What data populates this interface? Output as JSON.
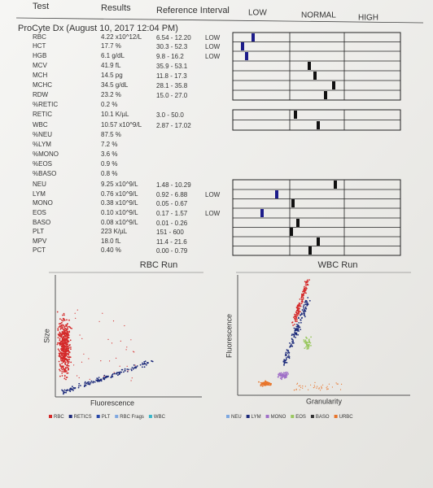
{
  "header": {
    "test": "Test",
    "results": "Results",
    "reference": "Reference Interval",
    "low": "LOW",
    "normal": "NORMAL",
    "high": "HIGH"
  },
  "title": "ProCyte Dx (August 10, 2017 12:04 PM)",
  "rows": [
    {
      "test": "RBC",
      "result": "4.22 x10^12/L",
      "reference": "6.54 - 12.20",
      "flag": "LOW"
    },
    {
      "test": "HCT",
      "result": "17.7 %",
      "reference": "30.3 - 52.3",
      "flag": "LOW"
    },
    {
      "test": "HGB",
      "result": "6.1 g/dL",
      "reference": "9.8 - 16.2",
      "flag": "LOW"
    },
    {
      "test": "MCV",
      "result": "41.9 fL",
      "reference": "35.9 - 53.1"
    },
    {
      "test": "MCH",
      "result": "14.5 pg",
      "reference": "11.8 - 17.3"
    },
    {
      "test": "MCHC",
      "result": "34.5 g/dL",
      "reference": "28.1 - 35.8"
    },
    {
      "test": "RDW",
      "result": "23.2 %",
      "reference": "15.0 - 27.0"
    },
    {
      "test": "%RETIC",
      "result": "0.2 %"
    },
    {
      "test": "RETIC",
      "result": "10.1 K/µL",
      "reference": "3.0 - 50.0"
    },
    {
      "test": "WBC",
      "result": "10.57 x10^9/L",
      "reference": "2.87 - 17.02"
    },
    {
      "test": "%NEU",
      "result": "87.5 %"
    },
    {
      "test": "%LYM",
      "result": "7.2 %"
    },
    {
      "test": "%MONO",
      "result": "3.6 %"
    },
    {
      "test": "%EOS",
      "result": "0.9 %"
    },
    {
      "test": "%BASO",
      "result": "0.8 %"
    },
    {
      "test": "NEU",
      "result": "9.25 x10^9/L",
      "reference": "1.48 - 10.29"
    },
    {
      "test": "LYM",
      "result": "0.76 x10^9/L",
      "reference": "0.92 - 6.88",
      "flag": "LOW"
    },
    {
      "test": "MONO",
      "result": "0.38 x10^9/L",
      "reference": "0.05 - 0.67"
    },
    {
      "test": "EOS",
      "result": "0.10 x10^9/L",
      "reference": "0.17 - 1.57",
      "flag": "LOW"
    },
    {
      "test": "BASO",
      "result": "0.08 x10^9/L",
      "reference": "0.01 - 0.26"
    },
    {
      "test": "PLT",
      "result": "223 K/µL",
      "reference": "151 - 600"
    },
    {
      "test": "MPV",
      "result": "18.0 fL",
      "reference": "11.4 - 21.6"
    },
    {
      "test": "PCT",
      "result": "0.40 %",
      "reference": "0.00 - 0.79"
    }
  ],
  "plots": [
    {
      "title": "RBC Run",
      "xlabel": "Fluorescence",
      "ylabel": "Size",
      "legend": [
        {
          "name": "RBC",
          "color": "#d42a2a"
        },
        {
          "name": "RETICS",
          "color": "#1c2a7a"
        },
        {
          "name": "PLT",
          "color": "#2848a8"
        },
        {
          "name": "RBC Frags",
          "color": "#7fa8e0"
        },
        {
          "name": "WBC",
          "color": "#39b6c9"
        }
      ]
    },
    {
      "title": "WBC Run",
      "xlabel": "Granularity",
      "ylabel": "Fluorescence",
      "legend": [
        {
          "name": "NEU",
          "color": "#7fa8e0"
        },
        {
          "name": "LYM",
          "color": "#1c2a7a"
        },
        {
          "name": "MONO",
          "color": "#a070c8"
        },
        {
          "name": "EOS",
          "color": "#9ac860"
        },
        {
          "name": "BASO",
          "color": "#333333"
        },
        {
          "name": "URBC",
          "color": "#e8742a"
        }
      ]
    }
  ]
}
